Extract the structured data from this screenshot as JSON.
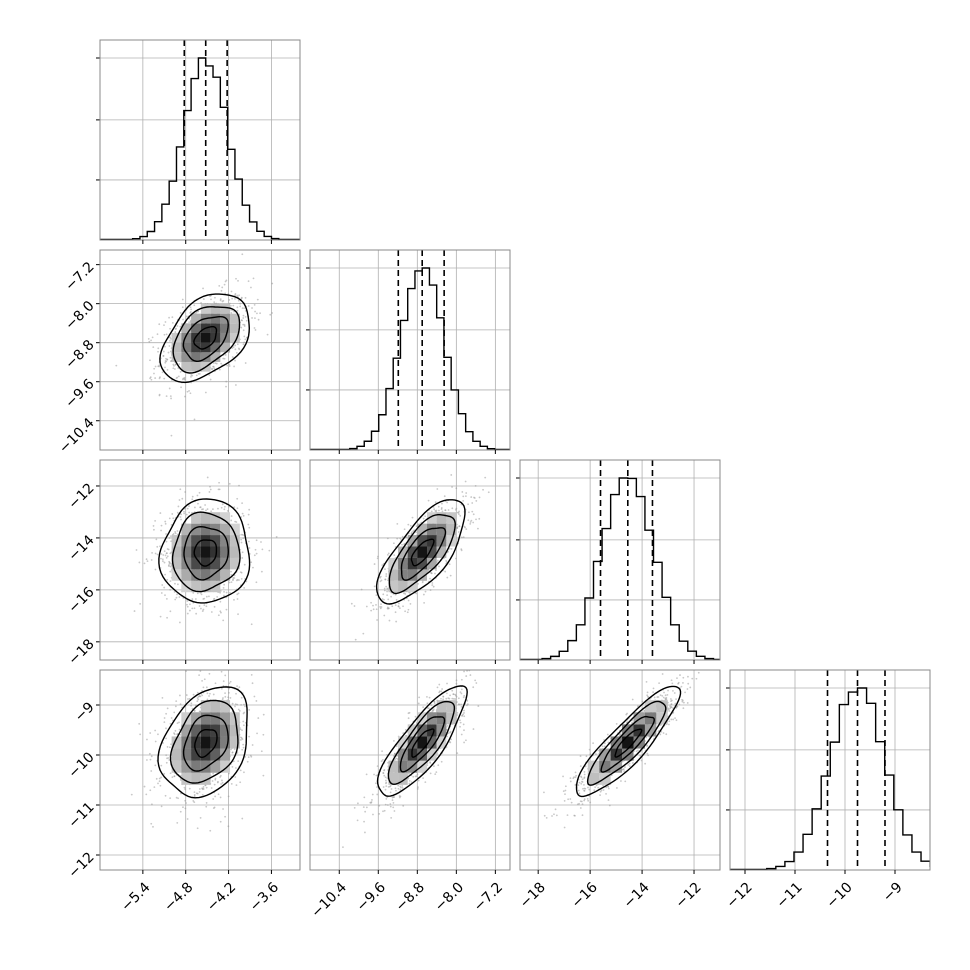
{
  "chart_data": {
    "type": "corner",
    "grid": true,
    "parameters": [
      {
        "name": "",
        "range": [
          -6.0,
          -3.2
        ],
        "ticks": [
          -5.4,
          -4.8,
          -4.2,
          -3.6
        ],
        "tick_labels": [
          "−5.4",
          "−4.8",
          "−4.2",
          "−3.6"
        ],
        "mean": -4.52,
        "std": 0.31,
        "quantiles": [
          -4.82,
          -4.52,
          -4.22
        ]
      },
      {
        "name": "",
        "range": [
          -11.0,
          -6.9
        ],
        "ticks": [
          -10.4,
          -9.6,
          -8.8,
          -8.0,
          -7.2
        ],
        "tick_labels": [
          "−10.4",
          "−9.6",
          "−8.8",
          "−8.0",
          "−7.2"
        ],
        "mean": -8.7,
        "std": 0.45,
        "quantiles": [
          -9.19,
          -8.7,
          -8.25
        ]
      },
      {
        "name": "",
        "range": [
          -18.7,
          -11.0
        ],
        "ticks": [
          -18,
          -16,
          -14,
          -12
        ],
        "tick_labels": [
          "−18",
          "−16",
          "−14",
          "−12"
        ],
        "mean": -14.55,
        "std": 1.0,
        "quantiles": [
          -15.6,
          -14.55,
          -13.6
        ]
      },
      {
        "name": "",
        "range": [
          -12.3,
          -8.3
        ],
        "ticks": [
          -12,
          -11,
          -10,
          -9
        ],
        "tick_labels": [
          "−12",
          "−11",
          "−10",
          "−9"
        ],
        "mean": -9.75,
        "std": 0.55,
        "quantiles": [
          -10.35,
          -9.75,
          -9.2
        ]
      }
    ],
    "correlations": [
      [
        1.0,
        0.42,
        0.05,
        0.3
      ],
      [
        0.42,
        1.0,
        0.72,
        0.82
      ],
      [
        0.05,
        0.72,
        1.0,
        0.88
      ],
      [
        0.3,
        0.82,
        0.88,
        1.0
      ]
    ],
    "histogram_bins": 20,
    "contour_levels": [
      0.5,
      1.0,
      1.5,
      2.0
    ],
    "colors": {
      "points": "#9a9a9a",
      "line": "#000000",
      "grid": "#b0b0b0",
      "frame": "#888888"
    }
  }
}
